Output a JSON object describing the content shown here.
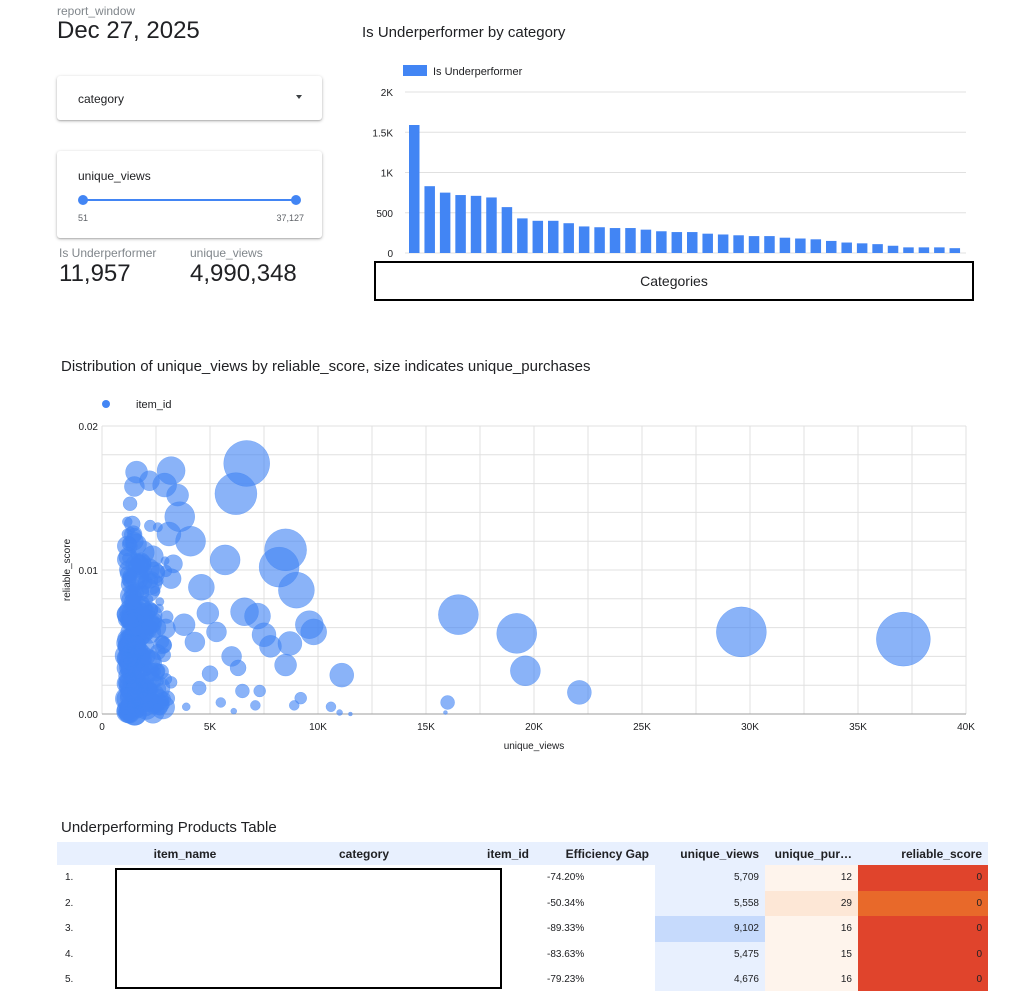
{
  "report_window": {
    "label": "report_window",
    "value": "Dec 27, 2025"
  },
  "category_control": {
    "label": "category"
  },
  "views_slider": {
    "label": "unique_views",
    "min": "51",
    "max": "37,127",
    "low_fraction": 0,
    "high_fraction": 1
  },
  "scorecards": [
    {
      "label": "Is Underperformer",
      "value": "11,957"
    },
    {
      "label": "unique_views",
      "value": "4,990,348"
    }
  ],
  "bar_chart": {
    "title": "Is Underperformer by category",
    "legend": "Is Underperformer",
    "x_axis_box_label": "Categories",
    "y_ticks": [
      "0",
      "500",
      "1K",
      "1.5K",
      "2K"
    ],
    "color": "#4285f4"
  },
  "scatter_chart": {
    "title": "Distribution of unique_views by reliable_score, size indicates unique_purchases",
    "legend": "item_id",
    "xlabel": "unique_views",
    "ylabel": "reliable_score",
    "x_ticks": [
      "0",
      "5K",
      "10K",
      "15K",
      "20K",
      "25K",
      "30K",
      "35K",
      "40K"
    ],
    "y_ticks": [
      "0.00",
      "0.01",
      "0.02"
    ],
    "color": "#4285f4"
  },
  "chart_data": [
    {
      "type": "bar",
      "title": "Is Underperformer by category",
      "xlabel": "Categories",
      "ylabel": "",
      "ylim": [
        0,
        2000
      ],
      "series": [
        {
          "name": "Is Underperformer",
          "values": [
            1590,
            830,
            750,
            720,
            710,
            690,
            570,
            430,
            400,
            400,
            370,
            330,
            320,
            310,
            310,
            290,
            270,
            260,
            260,
            240,
            230,
            220,
            210,
            210,
            190,
            180,
            170,
            150,
            130,
            120,
            110,
            90,
            70,
            70,
            70,
            60
          ]
        }
      ],
      "categories_hidden": true,
      "legend": "top-left",
      "grid": true
    },
    {
      "type": "scatter",
      "title": "Distribution of unique_views by reliable_score, size indicates unique_purchases",
      "xlabel": "unique_views",
      "ylabel": "reliable_score",
      "xlim": [
        0,
        40000
      ],
      "ylim": [
        0,
        0.02
      ],
      "series": [
        {
          "name": "item_id",
          "points": [
            {
              "x": 6700,
              "y": 0.0174,
              "size": 46
            },
            {
              "x": 6200,
              "y": 0.0153,
              "size": 42
            },
            {
              "x": 3200,
              "y": 0.0169,
              "size": 28
            },
            {
              "x": 2900,
              "y": 0.0159,
              "size": 24
            },
            {
              "x": 3500,
              "y": 0.0152,
              "size": 22
            },
            {
              "x": 1600,
              "y": 0.0168,
              "size": 22
            },
            {
              "x": 1500,
              "y": 0.0158,
              "size": 20
            },
            {
              "x": 2200,
              "y": 0.0162,
              "size": 20
            },
            {
              "x": 3600,
              "y": 0.0137,
              "size": 30
            },
            {
              "x": 4100,
              "y": 0.012,
              "size": 30
            },
            {
              "x": 3100,
              "y": 0.0125,
              "size": 24
            },
            {
              "x": 8500,
              "y": 0.0114,
              "size": 42
            },
            {
              "x": 8200,
              "y": 0.0102,
              "size": 40
            },
            {
              "x": 9000,
              "y": 0.0086,
              "size": 36
            },
            {
              "x": 5700,
              "y": 0.0107,
              "size": 30
            },
            {
              "x": 4600,
              "y": 0.0088,
              "size": 26
            },
            {
              "x": 3200,
              "y": 0.0094,
              "size": 20
            },
            {
              "x": 2400,
              "y": 0.0098,
              "size": 22
            },
            {
              "x": 1800,
              "y": 0.0105,
              "size": 20
            },
            {
              "x": 1500,
              "y": 0.012,
              "size": 18
            },
            {
              "x": 1400,
              "y": 0.0132,
              "size": 16
            },
            {
              "x": 1300,
              "y": 0.0146,
              "size": 14
            },
            {
              "x": 1300,
              "y": 0.009,
              "size": 18
            },
            {
              "x": 1400,
              "y": 0.0078,
              "size": 16
            },
            {
              "x": 1300,
              "y": 0.0064,
              "size": 16
            },
            {
              "x": 1300,
              "y": 0.005,
              "size": 16
            },
            {
              "x": 1300,
              "y": 0.0038,
              "size": 14
            },
            {
              "x": 1300,
              "y": 0.0025,
              "size": 12
            },
            {
              "x": 1300,
              "y": 0.0012,
              "size": 10
            },
            {
              "x": 2000,
              "y": 0.007,
              "size": 20
            },
            {
              "x": 2500,
              "y": 0.006,
              "size": 20
            },
            {
              "x": 2800,
              "y": 0.0048,
              "size": 18
            },
            {
              "x": 2100,
              "y": 0.004,
              "size": 16
            },
            {
              "x": 2600,
              "y": 0.003,
              "size": 14
            },
            {
              "x": 3200,
              "y": 0.0022,
              "size": 12
            },
            {
              "x": 2300,
              "y": 0.0018,
              "size": 10
            },
            {
              "x": 3800,
              "y": 0.0062,
              "size": 22
            },
            {
              "x": 4300,
              "y": 0.005,
              "size": 20
            },
            {
              "x": 4900,
              "y": 0.007,
              "size": 22
            },
            {
              "x": 5300,
              "y": 0.0057,
              "size": 20
            },
            {
              "x": 6000,
              "y": 0.004,
              "size": 20
            },
            {
              "x": 6300,
              "y": 0.0032,
              "size": 16
            },
            {
              "x": 6600,
              "y": 0.0071,
              "size": 28
            },
            {
              "x": 7200,
              "y": 0.0068,
              "size": 26
            },
            {
              "x": 7500,
              "y": 0.0055,
              "size": 24
            },
            {
              "x": 7800,
              "y": 0.0047,
              "size": 22
            },
            {
              "x": 8700,
              "y": 0.0049,
              "size": 24
            },
            {
              "x": 9600,
              "y": 0.0062,
              "size": 28
            },
            {
              "x": 9800,
              "y": 0.0057,
              "size": 26
            },
            {
              "x": 8500,
              "y": 0.0034,
              "size": 22
            },
            {
              "x": 11100,
              "y": 0.0027,
              "size": 24
            },
            {
              "x": 5000,
              "y": 0.0028,
              "size": 16
            },
            {
              "x": 4500,
              "y": 0.0018,
              "size": 14
            },
            {
              "x": 6500,
              "y": 0.0016,
              "size": 14
            },
            {
              "x": 7300,
              "y": 0.0016,
              "size": 12
            },
            {
              "x": 9200,
              "y": 0.0011,
              "size": 12
            },
            {
              "x": 7100,
              "y": 0.0006,
              "size": 10
            },
            {
              "x": 10600,
              "y": 0.0005,
              "size": 10
            },
            {
              "x": 5500,
              "y": 0.0008,
              "size": 10
            },
            {
              "x": 3900,
              "y": 0.0005,
              "size": 8
            },
            {
              "x": 8900,
              "y": 0.0006,
              "size": 10
            },
            {
              "x": 6100,
              "y": 0.0002,
              "size": 6
            },
            {
              "x": 11000,
              "y": 0.0001,
              "size": 6
            },
            {
              "x": 11500,
              "y": 0.0,
              "size": 4
            },
            {
              "x": 16500,
              "y": 0.0069,
              "size": 40
            },
            {
              "x": 19200,
              "y": 0.0056,
              "size": 40
            },
            {
              "x": 19600,
              "y": 0.003,
              "size": 30
            },
            {
              "x": 22100,
              "y": 0.0015,
              "size": 24
            },
            {
              "x": 16000,
              "y": 0.0008,
              "size": 14
            },
            {
              "x": 15900,
              "y": 0.0001,
              "size": 4
            },
            {
              "x": 29600,
              "y": 0.0057,
              "size": 50
            },
            {
              "x": 37100,
              "y": 0.0052,
              "size": 54
            }
          ]
        }
      ],
      "legend": "top-left",
      "grid": true
    }
  ],
  "table": {
    "title": "Underperforming Products Table",
    "columns": [
      "",
      "item_name",
      "category",
      "item_id",
      "Efficiency Gap",
      "unique_views",
      "unique_pur…",
      "reliable_score"
    ],
    "rows": [
      {
        "n": "1.",
        "gap": "-74.20%",
        "views": "5,709",
        "purchases": "12",
        "score": "0"
      },
      {
        "n": "2.",
        "gap": "-50.34%",
        "views": "5,558",
        "purchases": "29",
        "score": "0"
      },
      {
        "n": "3.",
        "gap": "-89.33%",
        "views": "9,102",
        "purchases": "16",
        "score": "0"
      },
      {
        "n": "4.",
        "gap": "-83.63%",
        "views": "5,475",
        "purchases": "15",
        "score": "0"
      },
      {
        "n": "5.",
        "gap": "-79.23%",
        "views": "4,676",
        "purchases": "16",
        "score": "0"
      }
    ],
    "colors": {
      "views_light": "#e8f0fe",
      "views_dark": "#c6dafc",
      "purch_light": "#fef4ec",
      "purch_mid": "#fde7d6",
      "score_red": "#e0442c",
      "score_orange": "#e8692a"
    }
  }
}
